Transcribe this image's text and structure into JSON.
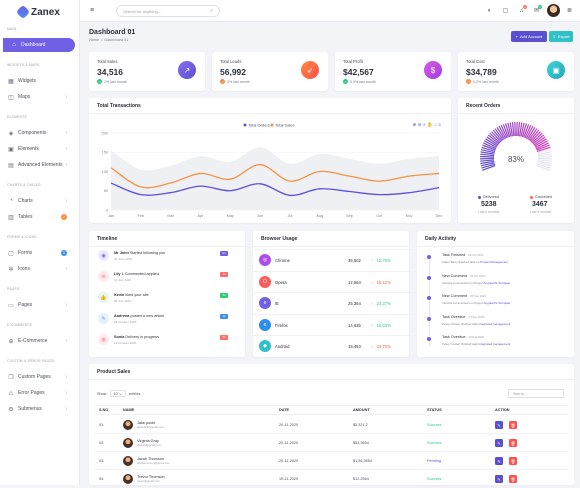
{
  "app": {
    "name": "Zanex"
  },
  "sidebar": {
    "sections": [
      "MAIN",
      "WIDGETS & MAPS",
      "ELEMENTS",
      "CHARTS & TABLES",
      "FORMS & ICONS",
      "PAGES",
      "E-COMMERCE",
      "CUSTOM & ERROR PAGES"
    ],
    "items": [
      {
        "label": "Dashboard",
        "icon": "home-icon"
      },
      {
        "label": "Widgets",
        "icon": "grid-icon"
      },
      {
        "label": "Maps",
        "icon": "map-icon"
      },
      {
        "label": "Components",
        "icon": "layers-icon"
      },
      {
        "label": "Elements",
        "icon": "package-icon"
      },
      {
        "label": "Advanced Elements",
        "icon": "document-icon"
      },
      {
        "label": "Charts",
        "icon": "pie-chart-icon"
      },
      {
        "label": "Tables",
        "icon": "table-icon",
        "badge": "2"
      },
      {
        "label": "Forms",
        "icon": "file-icon",
        "badge": "5"
      },
      {
        "label": "Icons",
        "icon": "star-icon"
      },
      {
        "label": "Pages",
        "icon": "pages-icon"
      },
      {
        "label": "E-Commerce",
        "icon": "cart-icon"
      },
      {
        "label": "Custom Pages",
        "icon": "copy-icon"
      },
      {
        "label": "Error Pages",
        "icon": "alert-icon"
      },
      {
        "label": "Submenus",
        "icon": "settings-icon"
      }
    ]
  },
  "topbar": {
    "search_placeholder": "Search for anything...",
    "notif_count": "5",
    "msg_count": "2"
  },
  "page": {
    "title": "Dashboard 01",
    "breadcrumb": [
      "Home",
      "Dashboard 01"
    ],
    "add_account": "Add Account",
    "export": "Export"
  },
  "stats": [
    {
      "label": "Total Sales",
      "value": "34,516",
      "trend": "2% last month",
      "color": "#6f60e6"
    },
    {
      "label": "Total Leads",
      "value": "56,992",
      "trend": "3% last month",
      "color": "#ff6b42"
    },
    {
      "label": "Total Profit",
      "value": "$42,567",
      "trend": "0.5% last month",
      "color": "#b14be8"
    },
    {
      "label": "Total Cost",
      "value": "$34,789",
      "trend": "0.2% last month",
      "color": "#2fc1c7"
    }
  ],
  "transactions": {
    "title": "Total Transactions",
    "legend": [
      "Total Orders",
      "Total Sales"
    ]
  },
  "chart_data": {
    "type": "line",
    "title": "Total Transactions",
    "categories": [
      "Jan",
      "Feb",
      "Mar",
      "Apr",
      "May",
      "Jun",
      "Jul",
      "Aug",
      "Sep",
      "Oct",
      "Nov",
      "Dec"
    ],
    "ylim": [
      0,
      200
    ],
    "yticks": [
      0,
      50,
      100,
      150,
      200
    ],
    "series": [
      {
        "name": "Total Orders",
        "color": "#5b4fe0",
        "values": [
          70,
          40,
          45,
          62,
          50,
          68,
          38,
          55,
          48,
          40,
          45,
          58
        ]
      },
      {
        "name": "Total Sales",
        "color": "#f49342",
        "values": [
          110,
          60,
          70,
          95,
          80,
          118,
          75,
          100,
          88,
          75,
          88,
          95
        ]
      }
    ],
    "grid": true,
    "legend": "top-center"
  },
  "recent_orders": {
    "title": "Recent Orders",
    "percent": "83%",
    "percent_value": 83,
    "delivered_label": "Delivered",
    "delivered": "5238",
    "cancelled_label": "Cancelled",
    "cancelled": "3467",
    "sub": "Last 6 months"
  },
  "timeline": {
    "title": "Timeline",
    "items": [
      {
        "name": "Mr John",
        "text": "Started following you",
        "date": "01 June 2020",
        "badge": "1m",
        "ic": "#6f60e6"
      },
      {
        "name": "Lily",
        "text": "1 Commented applied",
        "date": "01 July 2020",
        "badge": "2d",
        "ic": "#ff6b6b"
      },
      {
        "name": "Kevin",
        "text": "liked your site",
        "date": "05 July 2020",
        "badge": "3d",
        "ic": "#2bcb7b"
      },
      {
        "name": "Andrena",
        "text": "posted a new article",
        "date": "09 October 2020",
        "badge": "1w",
        "ic": "#3e8ef7"
      },
      {
        "name": "Sonia",
        "text": "Delivery in progress",
        "date": "12 October 2020",
        "badge": "2w",
        "ic": "#ff6b6b"
      }
    ]
  },
  "browser": {
    "title": "Browser Usage",
    "items": [
      {
        "name": "Chrome",
        "value": "35,502",
        "pct": "12.75%",
        "up": true,
        "color": "#b14be8"
      },
      {
        "name": "Opera",
        "value": "12,563",
        "pct": "15.12%",
        "up": false,
        "color": "#ff5b5b"
      },
      {
        "name": "IE",
        "value": "25,364",
        "pct": "24.37%",
        "up": true,
        "color": "#6f60e6"
      },
      {
        "name": "Firefox",
        "value": "14,635",
        "pct": "15.63%",
        "up": true,
        "color": "#2f8cf0"
      },
      {
        "name": "Android",
        "value": "15,453",
        "pct": "23.70%",
        "up": false,
        "color": "#2fc1c7"
      }
    ]
  },
  "activity": {
    "title": "Daily Activity",
    "items": [
      {
        "title": "Task Finished",
        "date": "09 Oct 2020",
        "sub": "Adam Berry finished task on",
        "link": "Project Management"
      },
      {
        "title": "New Comment",
        "date": "05 Oct 2020",
        "sub": "Victoria commented on Project",
        "link": "AngularJS Template"
      },
      {
        "title": "New Comment",
        "date": "25 Sep 2020",
        "sub": "Victoria commented on Project",
        "link": "AngularJS Template"
      },
      {
        "title": "Task Overdue",
        "date": "14 Sep 2020",
        "sub": "Petey Cruiser finished task",
        "link": "Integrated management"
      },
      {
        "title": "Task Overdue",
        "date": "29 Aug 2020",
        "sub": "Petey Cruiser finished task",
        "link": "Integrated management"
      }
    ]
  },
  "sales": {
    "title": "Product Sales",
    "show": "Show",
    "entries_value": "10",
    "entries": "entries",
    "search_placeholder": "Search...",
    "headers": [
      "S.NO",
      "NAME",
      "DATE",
      "AMOUNT",
      "STATUS",
      "ACTION"
    ],
    "rows": [
      {
        "no": "01.",
        "name": "Jake poole",
        "email": "jacke123@gmail.com",
        "date": "20-11-2020",
        "amount": "$5.321.2",
        "status": "Success",
        "status_color": "#2bcb7b"
      },
      {
        "no": "02.",
        "name": "Virginia Gray",
        "email": "virginia@gmail.com",
        "date": "20-11-2020",
        "amount": "$53,3654",
        "status": "Success",
        "status_color": "#2bcb7b"
      },
      {
        "no": "03.",
        "name": "Jacob Thomson",
        "email": "jacobthomson@gmail.com",
        "date": "20-11-2020",
        "amount": "$1,56,3654",
        "status": "Pending",
        "status_color": "#5a4fd1"
      },
      {
        "no": "04.",
        "name": "Trevor Thomson",
        "email": "trevor@gmail.com",
        "date": "19-11-2020",
        "amount": "$12.2564",
        "status": "Success",
        "status_color": "#2bcb7b"
      }
    ]
  }
}
